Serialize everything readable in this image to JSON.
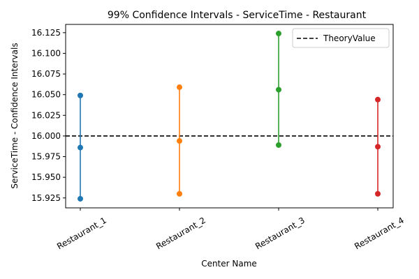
{
  "chart_data": {
    "type": "scatter",
    "title": "99% Confidence Intervals - ServiceTime - Restaurant",
    "xlabel": "Center Name",
    "ylabel": "ServiceTime - Confidence Intervals",
    "categories": [
      "Restaurant_1",
      "Restaurant_2",
      "Restaurant_3",
      "Restaurant_4"
    ],
    "intervals": [
      {
        "category": "Restaurant_1",
        "lower": 15.924,
        "mean": 15.986,
        "upper": 16.049,
        "color": "#1f77b4"
      },
      {
        "category": "Restaurant_2",
        "lower": 15.93,
        "mean": 15.994,
        "upper": 16.059,
        "color": "#ff7f0e"
      },
      {
        "category": "Restaurant_3",
        "lower": 15.989,
        "mean": 16.056,
        "upper": 16.124,
        "color": "#2ca02c"
      },
      {
        "category": "Restaurant_4",
        "lower": 15.93,
        "mean": 15.987,
        "upper": 16.044,
        "color": "#d62728"
      }
    ],
    "reference_line": {
      "name": "TheoryValue",
      "value": 16.0,
      "style": "dashed",
      "color": "#000000"
    },
    "ylim": [
      15.913,
      16.135
    ],
    "yticks": [
      "15.925",
      "15.950",
      "15.975",
      "16.000",
      "16.025",
      "16.050",
      "16.075",
      "16.100",
      "16.125"
    ],
    "grid": false,
    "legend": {
      "position": "top-right",
      "entries": [
        "TheoryValue"
      ]
    }
  }
}
